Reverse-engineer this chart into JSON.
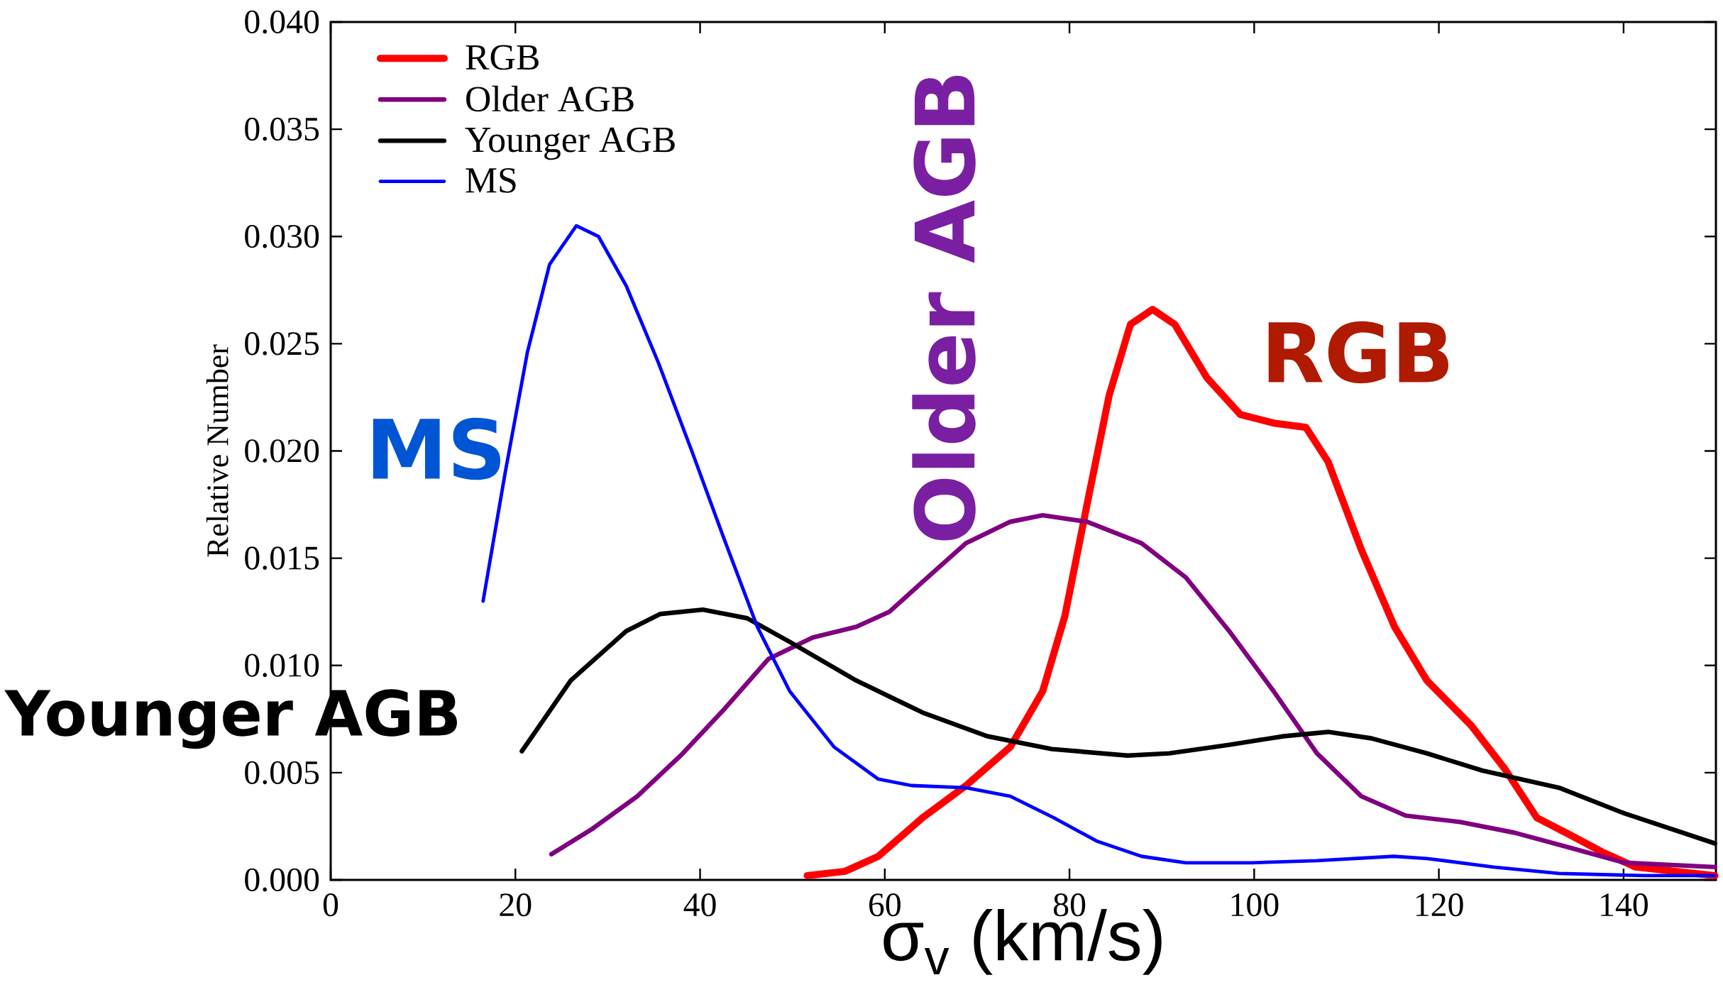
{
  "chart_data": {
    "type": "line",
    "xlabel": "σ$_{v}$ (km/s)",
    "ylabel": "Relative Number",
    "xlim": [
      0,
      150
    ],
    "ylim": [
      0,
      0.04
    ],
    "xticks": [
      0,
      20,
      40,
      60,
      80,
      100,
      120,
      140
    ],
    "yticks": [
      {
        "value": 0,
        "label": "0.000"
      },
      {
        "value": 0.005,
        "label": "0.005"
      },
      {
        "value": 0.01,
        "label": "0.010"
      },
      {
        "value": 0.015,
        "label": "0.015"
      },
      {
        "value": 0.02,
        "label": "0.020"
      },
      {
        "value": 0.025,
        "label": "0.025"
      },
      {
        "value": 0.03,
        "label": "0.030"
      },
      {
        "value": 0.035,
        "label": "0.035"
      },
      {
        "value": 0.04,
        "label": "0.040"
      }
    ],
    "legend": "top left",
    "grid": false,
    "marker": "none",
    "line_style": "solid",
    "annotations": [
      "Younger AGB",
      "MS",
      "Older AGB",
      "RGB"
    ],
    "series": [
      {
        "name": "RGB",
        "color": "#ff0000",
        "x": [
          51.6,
          55.7,
          59.3,
          64.1,
          68.8,
          73.6,
          77.1,
          79.5,
          81.9,
          84.3,
          86.6,
          89,
          91.4,
          94.9,
          98.5,
          102.1,
          105.6,
          108,
          111.6,
          115.2,
          118.7,
          123.5,
          127.1,
          130.6,
          134.2,
          137.7,
          141.3,
          149.9
        ],
        "values": [
          0.0002,
          0.0004,
          0.0011,
          0.0029,
          0.0044,
          0.0062,
          0.0088,
          0.0123,
          0.0175,
          0.0226,
          0.0259,
          0.0266,
          0.0259,
          0.0234,
          0.0217,
          0.0213,
          0.0211,
          0.0195,
          0.0154,
          0.0118,
          0.0093,
          0.0072,
          0.0052,
          0.0029,
          0.0021,
          0.0013,
          0.0006,
          0.0002
        ]
      },
      {
        "name": "Older AGB",
        "color": "#800080",
        "x": [
          23.9,
          28.4,
          33.2,
          37.9,
          42.7,
          47.4,
          52.2,
          56.9,
          60.5,
          64.1,
          68.8,
          73.6,
          77.1,
          81.9,
          87.8,
          92.6,
          97.3,
          102.1,
          106.8,
          111.6,
          116.4,
          122.3,
          128.2,
          134.2,
          140.1,
          149.9
        ],
        "values": [
          0.0012,
          0.0024,
          0.0039,
          0.0058,
          0.008,
          0.0103,
          0.0113,
          0.0118,
          0.0125,
          0.0139,
          0.0157,
          0.0167,
          0.017,
          0.0167,
          0.0157,
          0.0141,
          0.0116,
          0.0088,
          0.0059,
          0.0039,
          0.003,
          0.0027,
          0.0022,
          0.0015,
          0.0008,
          0.0006
        ]
      },
      {
        "name": "Younger AGB",
        "color": "#000000",
        "x": [
          20.7,
          26,
          32,
          35.7,
          40.3,
          45.1,
          49.7,
          56.9,
          64.1,
          71.1,
          78.1,
          86.3,
          90.8,
          97.3,
          103.2,
          108,
          112.7,
          118.7,
          124.7,
          133,
          140.1,
          149.9
        ],
        "values": [
          0.006,
          0.0093,
          0.0116,
          0.0124,
          0.0126,
          0.0122,
          0.0111,
          0.0093,
          0.0078,
          0.0067,
          0.0061,
          0.0058,
          0.0059,
          0.0063,
          0.0067,
          0.0069,
          0.0066,
          0.0059,
          0.0051,
          0.0043,
          0.0031,
          0.0017
        ]
      },
      {
        "name": "MS",
        "color": "#0000ff",
        "x": [
          16.5,
          18.9,
          21.3,
          23.7,
          26.6,
          29,
          32,
          35.5,
          39.1,
          42.6,
          46.2,
          49.7,
          54.5,
          59.3,
          62.9,
          68.8,
          73.6,
          78.3,
          83,
          87.8,
          92.6,
          99.7,
          106.8,
          115.1,
          118.7,
          125.9,
          133,
          142.1,
          149.9
        ],
        "values": [
          0.013,
          0.019,
          0.0246,
          0.0287,
          0.0305,
          0.03,
          0.0277,
          0.0241,
          0.02,
          0.0159,
          0.0118,
          0.0088,
          0.0062,
          0.0047,
          0.0044,
          0.0043,
          0.0039,
          0.0029,
          0.0018,
          0.0011,
          0.0008,
          0.0008,
          0.0009,
          0.0011,
          0.001,
          0.0006,
          0.0003,
          0.0002,
          0.0002
        ]
      }
    ]
  }
}
